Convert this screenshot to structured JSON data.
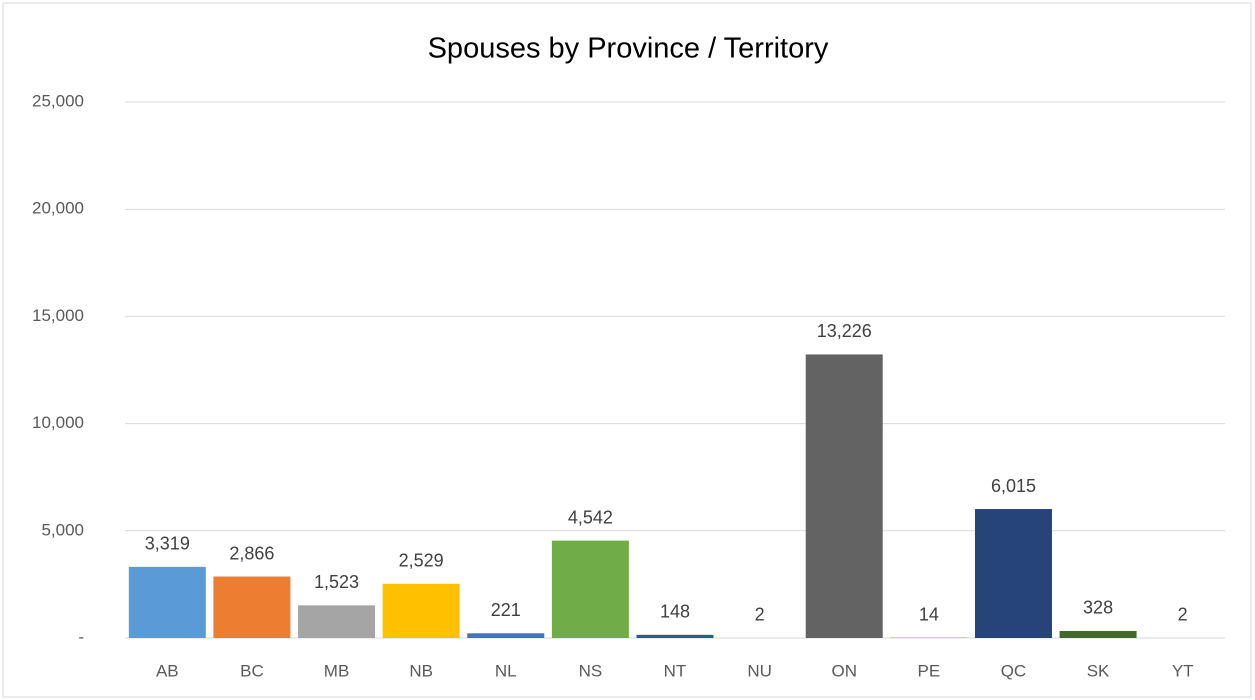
{
  "chart_data": {
    "type": "bar",
    "title": "Spouses by Province / Territory",
    "categories": [
      "AB",
      "BC",
      "MB",
      "NB",
      "NL",
      "NS",
      "NT",
      "NU",
      "ON",
      "PE",
      "QC",
      "SK",
      "YT"
    ],
    "values": [
      3319,
      2866,
      1523,
      2529,
      221,
      4542,
      148,
      2,
      13226,
      14,
      6015,
      328,
      2
    ],
    "value_labels": [
      "3,319",
      "2,866",
      "1,523",
      "2,529",
      "221",
      "4,542",
      "148",
      "2",
      "13,226",
      "14",
      "6,015",
      "328",
      "2"
    ],
    "colors": [
      "#5b9bd5",
      "#ed7d31",
      "#a5a5a5",
      "#ffc000",
      "#4472c4",
      "#70ad47",
      "#255e91",
      "#9e480e",
      "#636363",
      "#997300",
      "#264478",
      "#43682b",
      "#698ed0"
    ],
    "ylim": [
      0,
      25000
    ],
    "yticks": [
      {
        "value": 0,
        "label": "-"
      },
      {
        "value": 5000,
        "label": "5,000"
      },
      {
        "value": 10000,
        "label": "10,000"
      },
      {
        "value": 15000,
        "label": "15,000"
      },
      {
        "value": 20000,
        "label": "20,000"
      },
      {
        "value": 25000,
        "label": "25,000"
      }
    ],
    "grid": true
  }
}
